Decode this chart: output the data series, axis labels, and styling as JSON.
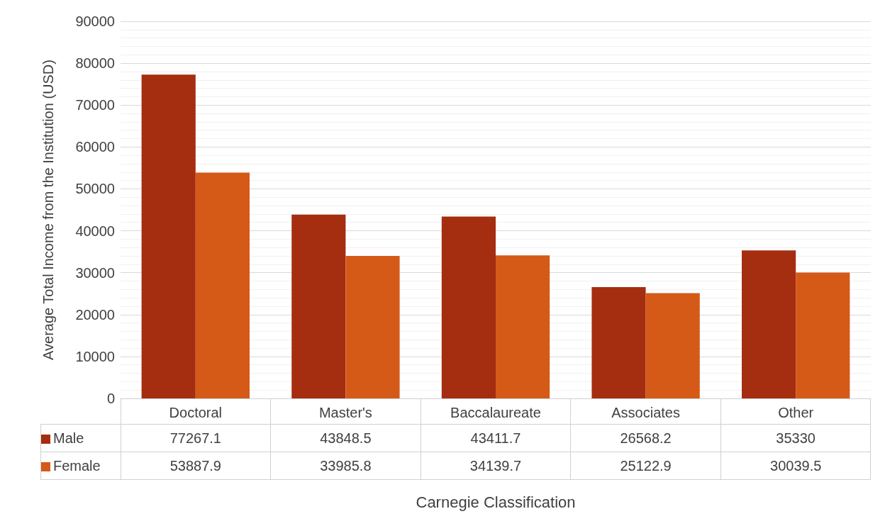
{
  "chart_data": {
    "type": "bar",
    "xlabel": "Carnegie Classification",
    "ylabel": "Average Total Income from the Institution (USD)",
    "categories": [
      "Doctoral",
      "Master's",
      "Baccalaureate",
      "Associates",
      "Other"
    ],
    "series": [
      {
        "name": "Male",
        "color": "#a52d10",
        "values": [
          77267.1,
          43848.5,
          43411.7,
          26568.2,
          35330
        ]
      },
      {
        "name": "Female",
        "color": "#d55a18",
        "values": [
          53887.9,
          33985.8,
          34139.7,
          25122.9,
          30039.5
        ]
      }
    ],
    "ylim": [
      0,
      90000
    ],
    "yticks": [
      0,
      10000,
      20000,
      30000,
      40000,
      50000,
      60000,
      70000,
      80000,
      90000
    ],
    "grid": "y",
    "legend": "bottom",
    "data_labels": true
  }
}
